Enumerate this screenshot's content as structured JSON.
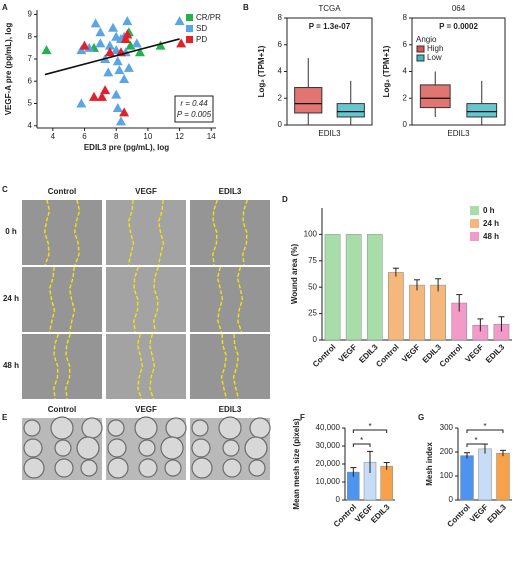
{
  "chart_data": [
    {
      "type": "scatter",
      "label": "A",
      "xlabel": "EDIL3 pre (pg/mL), log",
      "ylabel": "VEGF-A pre (pg/mL), log",
      "xlim": [
        3,
        14.3
      ],
      "xticks": [
        4,
        6,
        8,
        10,
        12,
        14
      ],
      "ylim": [
        3.9,
        9.2
      ],
      "yticks": [
        4,
        5,
        6,
        7,
        8,
        9
      ],
      "series": [
        {
          "name": "CR/PR",
          "color": "#22b14c",
          "x": [
            3.6,
            6.6,
            8.8,
            8.9,
            9.5,
            10.8
          ],
          "y": [
            7.4,
            7.5,
            8.2,
            7.6,
            7.3,
            7.6
          ]
        },
        {
          "name": "SD",
          "color": "#5aa5e6",
          "x": [
            5.8,
            6.3,
            6.7,
            7.0,
            7.3,
            7.5,
            7.8,
            8.0,
            8.0,
            8.1,
            8.2,
            8.3,
            8.5,
            8.6,
            8.0,
            8.1,
            8.3,
            8.5,
            8.7,
            9.3,
            7.0,
            8.8,
            12.0,
            5.8,
            7.6
          ],
          "y": [
            7.4,
            7.5,
            8.6,
            8.2,
            7.0,
            6.4,
            8.4,
            8.0,
            7.4,
            6.9,
            6.5,
            7.9,
            8.0,
            7.3,
            5.4,
            4.8,
            4.2,
            6.1,
            8.7,
            7.7,
            7.7,
            6.6,
            8.7,
            5.0,
            7.6
          ]
        },
        {
          "name": "PD",
          "color": "#e0202a",
          "x": [
            6.0,
            6.6,
            7.1,
            7.3,
            7.6,
            8.3,
            8.5,
            8.7,
            8.6,
            12.1
          ],
          "y": [
            7.6,
            5.3,
            5.3,
            5.6,
            7.3,
            7.3,
            4.6,
            8.1,
            7.9,
            7.7
          ]
        }
      ],
      "fit": {
        "x": [
          3.5,
          12
        ],
        "y": [
          6.3,
          7.9
        ]
      },
      "annotations": [
        "r = 0.44",
        "P = 0.005"
      ]
    },
    {
      "type": "box",
      "label": "B",
      "title": "TCGA",
      "annotation": "P = 1.3e-07",
      "ylabel": "Log₂ (TPM+1)",
      "xlabel": "EDIL3",
      "ylim": [
        0,
        8
      ],
      "yticks": [
        0,
        2,
        4,
        6,
        8
      ],
      "series": [
        {
          "color": "#d9534f",
          "whislo": 0,
          "q1": 0.9,
          "median": 1.6,
          "q3": 2.8,
          "whishi": 5.0
        },
        {
          "color": "#3fb8c4",
          "whislo": 0,
          "q1": 0.6,
          "median": 1.0,
          "q3": 1.6,
          "whishi": 3.3
        }
      ]
    },
    {
      "type": "box",
      "title": "064",
      "annotation": "P = 0.0002",
      "ylabel": "Log₂ (TPM+1)",
      "xlabel": "EDIL3",
      "ylim": [
        0,
        8
      ],
      "yticks": [
        0,
        2,
        4,
        6,
        8
      ],
      "legend_title": "Angio",
      "series": [
        {
          "name": "High",
          "color": "#d9534f",
          "whislo": 0.6,
          "q1": 1.3,
          "median": 2.0,
          "q3": 3.0,
          "whishi": 4.0
        },
        {
          "name": "Low",
          "color": "#3fb8c4",
          "whislo": 0,
          "q1": 0.6,
          "median": 1.0,
          "q3": 1.6,
          "whishi": 3.3
        }
      ]
    },
    {
      "type": "bar",
      "label": "D",
      "ylabel": "Wound area (%)",
      "categories": [
        "Control",
        "VEGF",
        "EDIL3"
      ],
      "ylim": [
        0,
        125
      ],
      "yticks": [
        0,
        25,
        50,
        75,
        100
      ],
      "series": [
        {
          "name": "0 h",
          "color": "#a8dca8",
          "values": [
            100,
            100,
            100
          ],
          "errors": [
            0,
            0,
            0
          ]
        },
        {
          "name": "24 h",
          "color": "#f6b77d",
          "values": [
            64,
            52,
            52
          ],
          "errors": [
            4,
            5,
            6
          ]
        },
        {
          "name": "48 h",
          "color": "#f29ac8",
          "values": [
            35,
            14,
            15
          ],
          "errors": [
            8,
            6,
            7
          ]
        }
      ]
    },
    {
      "type": "bar",
      "label": "F",
      "ylabel": "Mean mesh size (pixels)",
      "categories": [
        "Control",
        "VEGF",
        "EDIL3"
      ],
      "ylim": [
        0,
        40000
      ],
      "yticks": [
        0,
        {
          "value": 10000,
          "label": "10,000"
        },
        {
          "value": 20000,
          "label": "20,000"
        },
        {
          "value": 30000,
          "label": "30,000"
        },
        {
          "value": 40000,
          "label": "40,000"
        }
      ],
      "series": [
        {
          "colors": [
            "#4d94f0",
            "#c6dcf7",
            "#f7a14b"
          ],
          "values": [
            15500,
            21000,
            18800
          ],
          "errors": [
            2500,
            6000,
            2000
          ]
        }
      ],
      "significance": [
        {
          "label": "*",
          "between": [
            "Control",
            "VEGF"
          ]
        },
        {
          "label": "*",
          "between": [
            "Control",
            "EDIL3"
          ]
        }
      ]
    },
    {
      "type": "bar",
      "label": "G",
      "ylabel": "Mesh index",
      "categories": [
        "Control",
        "VEGF",
        "EDIL3"
      ],
      "ylim": [
        0,
        300
      ],
      "yticks": [
        0,
        100,
        200,
        300
      ],
      "series": [
        {
          "colors": [
            "#4d94f0",
            "#c6dcf7",
            "#f7a14b"
          ],
          "values": [
            185,
            213,
            195
          ],
          "errors": [
            12,
            20,
            12
          ]
        }
      ],
      "significance": [
        {
          "label": "*",
          "between": [
            "Control",
            "VEGF"
          ]
        },
        {
          "label": "*",
          "between": [
            "Control",
            "EDIL3"
          ]
        }
      ]
    }
  ],
  "panel_c": {
    "label": "C",
    "columns": [
      "Control",
      "VEGF",
      "EDIL3"
    ],
    "rows": [
      "0 h",
      "24 h",
      "48 h"
    ]
  },
  "panel_e": {
    "label": "E",
    "columns": [
      "Control",
      "VEGF",
      "EDIL3"
    ]
  }
}
